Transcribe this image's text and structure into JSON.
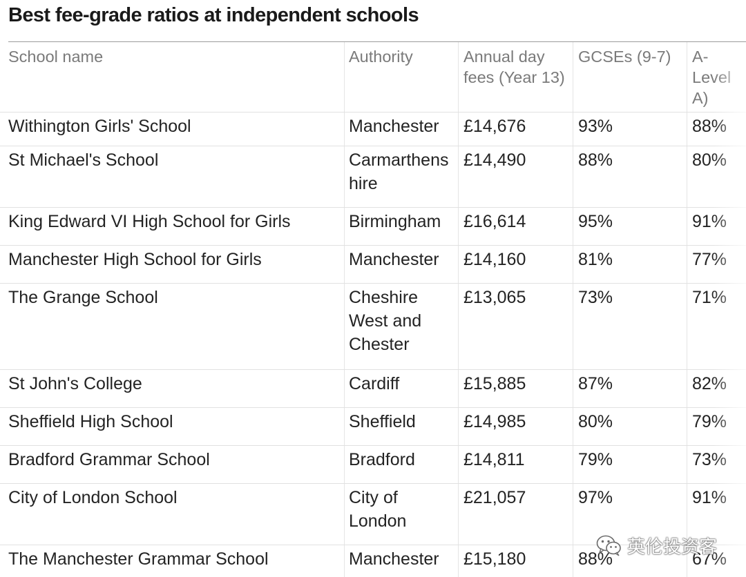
{
  "title": "Best fee-grade ratios at independent schools",
  "columns": {
    "school": "School name",
    "authority": "Authority",
    "fees": "Annual day fees (Year 13)",
    "gcse": "GCSEs (9-7)",
    "alevel": "A-Level A)"
  },
  "rows": [
    {
      "school": "Withington Girls' School",
      "authority": "Manchester",
      "fees": "£14,676",
      "gcse": "93%",
      "alevel": "88%"
    },
    {
      "school": "St Michael's School",
      "authority": "Carmarthenshire",
      "fees": "£14,490",
      "gcse": "88%",
      "alevel": "80%"
    },
    {
      "school": "King Edward VI High School for Girls",
      "authority": "Birmingham",
      "fees": "£16,614",
      "gcse": "95%",
      "alevel": "91%"
    },
    {
      "school": "Manchester High School for Girls",
      "authority": "Manchester",
      "fees": "£14,160",
      "gcse": "81%",
      "alevel": "77%"
    },
    {
      "school": "The Grange School",
      "authority": "Cheshire West and Chester",
      "fees": "£13,065",
      "gcse": "73%",
      "alevel": "71%"
    },
    {
      "school": "St John's College",
      "authority": "Cardiff",
      "fees": "£15,885",
      "gcse": "87%",
      "alevel": "82%"
    },
    {
      "school": "Sheffield High School",
      "authority": "Sheffield",
      "fees": "£14,985",
      "gcse": "80%",
      "alevel": "79%"
    },
    {
      "school": "Bradford Grammar School",
      "authority": "Bradford",
      "fees": "£14,811",
      "gcse": "79%",
      "alevel": "73%"
    },
    {
      "school": "City of London School",
      "authority": "City of London",
      "fees": "£21,057",
      "gcse": "97%",
      "alevel": "91%"
    },
    {
      "school": "The Manchester Grammar School",
      "authority": "Manchester",
      "fees": "£15,180",
      "gcse": "88%",
      "alevel": "67%"
    }
  ],
  "watermark": {
    "text": "英伦投资客",
    "icon": "wechat-icon"
  }
}
